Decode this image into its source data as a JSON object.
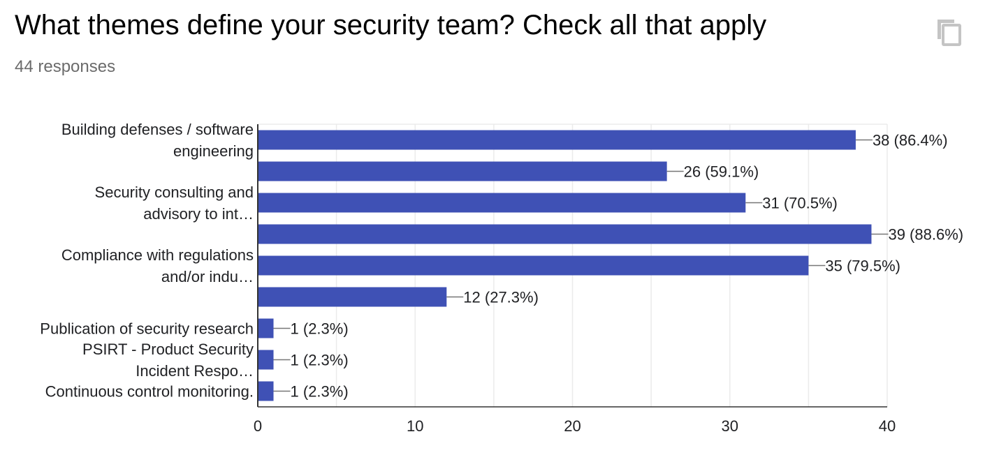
{
  "header": {
    "title": "What themes define your security team? Check all that apply",
    "responses": "44 responses",
    "copy_icon": "copy-icon"
  },
  "colors": {
    "bar": "#3f51b5",
    "grid": "#ebebeb",
    "axis": "#333333",
    "text": "#202124"
  },
  "chart_data": {
    "type": "bar",
    "orientation": "horizontal",
    "categories": [
      [
        "Building defenses / software",
        "engineering"
      ],
      [],
      [
        "Security consulting and",
        "advisory to int…"
      ],
      [],
      [
        "Compliance with regulations",
        "and/or indu…"
      ],
      [],
      [
        "Publication of security research"
      ],
      [
        "PSIRT - Product Security",
        "Incident Respo…"
      ],
      [
        "Continuous control monitoring."
      ]
    ],
    "values": [
      38,
      26,
      31,
      39,
      35,
      12,
      1,
      1,
      1
    ],
    "data_labels": [
      "38 (86.4%)",
      "26 (59.1%)",
      "31 (70.5%)",
      "39 (88.6%)",
      "35 (79.5%)",
      "12 (27.3%)",
      "1 (2.3%)",
      "1 (2.3%)",
      "1 (2.3%)"
    ],
    "xlim": [
      0,
      40
    ],
    "xticks": [
      0,
      10,
      20,
      30,
      40
    ],
    "minor_gridlines": true,
    "legend": "none"
  }
}
